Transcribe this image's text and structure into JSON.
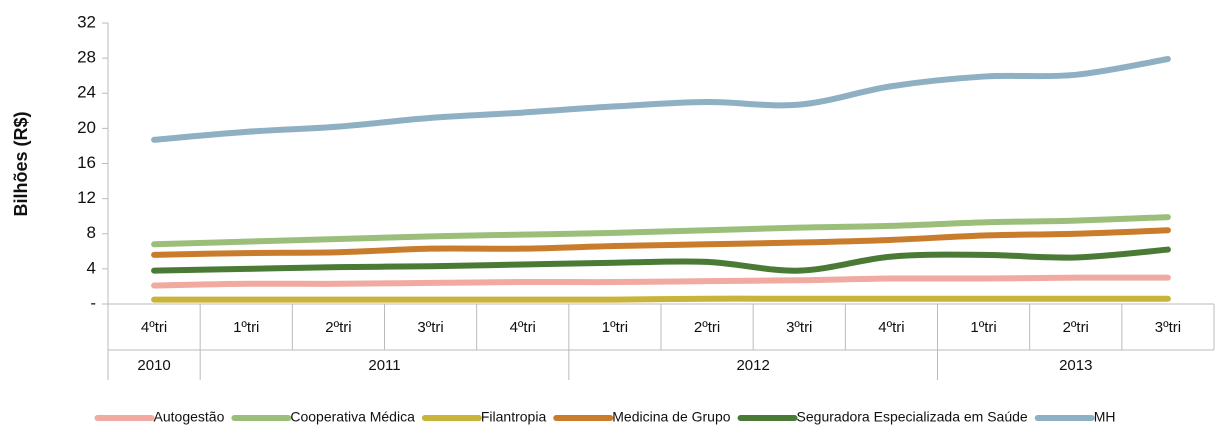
{
  "chart_data": {
    "type": "line",
    "y_label": "Bilhões (R$)",
    "categories": [
      "4ºtri",
      "1ºtri",
      "2ºtri",
      "3ºtri",
      "4ºtri",
      "1ºtri",
      "2ºtri",
      "3ºtri",
      "4ºtri",
      "1ºtri",
      "2ºtri",
      "3ºtri"
    ],
    "years": [
      "2010",
      "2011",
      null,
      null,
      null,
      "2012",
      null,
      null,
      null,
      "2013",
      null,
      null
    ],
    "ylim": [
      0,
      32
    ],
    "yticks": [
      {
        "value": 0,
        "label": "-"
      },
      4,
      8,
      12,
      16,
      20,
      24,
      28,
      32
    ],
    "series": [
      {
        "name": "Autogestão",
        "color": "#f0aaa0",
        "values": [
          2.1,
          2.3,
          2.3,
          2.4,
          2.5,
          2.5,
          2.6,
          2.7,
          2.9,
          2.9,
          3.0,
          3.0
        ]
      },
      {
        "name": "Cooperativa Médica",
        "color": "#9bbf7b",
        "values": [
          6.8,
          7.1,
          7.4,
          7.7,
          7.9,
          8.1,
          8.4,
          8.7,
          8.9,
          9.3,
          9.5,
          9.9
        ]
      },
      {
        "name": "Filantropia",
        "color": "#c9b43a",
        "values": [
          0.5,
          0.5,
          0.5,
          0.5,
          0.5,
          0.5,
          0.6,
          0.6,
          0.6,
          0.6,
          0.6,
          0.6
        ]
      },
      {
        "name": "Medicina de Grupo",
        "color": "#c97c2b",
        "values": [
          5.6,
          5.8,
          5.9,
          6.3,
          6.3,
          6.6,
          6.8,
          7.0,
          7.3,
          7.8,
          8.0,
          8.4
        ]
      },
      {
        "name": "Seguradora Especializada em Saúde",
        "color": "#4a7a35",
        "values": [
          3.8,
          4.0,
          4.2,
          4.3,
          4.5,
          4.7,
          4.8,
          3.8,
          5.4,
          5.6,
          5.3,
          6.2
        ]
      },
      {
        "name": "MH",
        "color": "#8fb0c3",
        "values": [
          18.7,
          19.6,
          20.2,
          21.2,
          21.8,
          22.5,
          23.0,
          22.7,
          24.8,
          25.9,
          26.1,
          27.9
        ]
      }
    ]
  }
}
